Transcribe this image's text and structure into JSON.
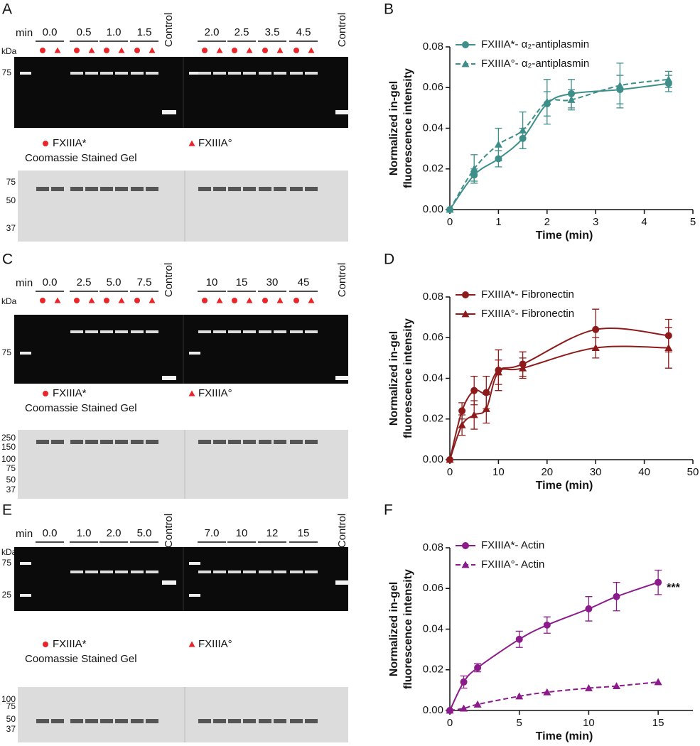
{
  "gels": [
    {
      "panel": "A",
      "min_label": "min",
      "kda_label": "kDa",
      "times": [
        "0.0",
        "0.5",
        "1.0",
        "1.5",
        "2.0",
        "2.5",
        "3.5",
        "4.5"
      ],
      "control": "Control",
      "markers": [
        "75"
      ],
      "legend": [
        "FXIIIA*",
        "FXIIIA°"
      ],
      "coomassie_title": "Coomassie Stained Gel",
      "coomassie_markers": [
        "75",
        "50",
        "37"
      ]
    },
    {
      "panel": "C",
      "min_label": "min",
      "kda_label": "kDa",
      "times": [
        "0.0",
        "2.5",
        "5.0",
        "7.5",
        "10",
        "15",
        "30",
        "45"
      ],
      "control": "Control",
      "markers": [
        "75"
      ],
      "legend": [
        "FXIIIA*",
        "FXIIIA°"
      ],
      "coomassie_title": "Coomassie Stained Gel",
      "coomassie_markers": [
        "250",
        "150",
        "100",
        "75",
        "50",
        "37"
      ]
    },
    {
      "panel": "E",
      "min_label": "min",
      "kda_label": "kDa",
      "times": [
        "0.0",
        "1.0",
        "2.0",
        "5.0",
        "7.0",
        "10",
        "12",
        "15"
      ],
      "control": "Control",
      "markers": [
        "75",
        "25"
      ],
      "legend": [
        "FXIIIA*",
        "FXIIIA°"
      ],
      "coomassie_title": "Coomassie Stained Gel",
      "coomassie_markers": [
        "100",
        "75",
        "50",
        "37"
      ]
    }
  ],
  "chart_data": [
    {
      "panel": "B",
      "type": "line",
      "x": [
        0,
        0.5,
        1,
        1.5,
        2,
        2.5,
        3.5,
        4.5
      ],
      "series": [
        {
          "name": "FXIIIA*- α₂-antiplasmin",
          "color": "#3e8e8a",
          "marker": "circle",
          "line_style": "solid",
          "values": [
            0,
            0.017,
            0.025,
            0.035,
            0.052,
            0.057,
            0.059,
            0.062
          ],
          "errors": [
            0,
            0.003,
            0.004,
            0.005,
            0.006,
            0.007,
            0.007,
            0.004
          ]
        },
        {
          "name": "FXIIIA°- α₂-antiplasmin",
          "color": "#3e8e8a",
          "marker": "triangle",
          "line_style": "dashed",
          "values": [
            0,
            0.02,
            0.032,
            0.039,
            0.053,
            0.054,
            0.061,
            0.064
          ],
          "errors": [
            0,
            0.007,
            0.008,
            0.009,
            0.011,
            0.005,
            0.011,
            0.004
          ]
        }
      ],
      "xlabel": "Time (min)",
      "ylabel": [
        "Normalized in-gel",
        "fluorescence intensity"
      ],
      "xlim": [
        0,
        5
      ],
      "xticks": [
        0,
        1,
        2,
        3,
        4,
        5
      ],
      "ylim": [
        0,
        0.08
      ],
      "yticks": [
        {
          "value": 0,
          "label": "0.00"
        },
        {
          "value": 0.02,
          "label": "0.02"
        },
        {
          "value": 0.04,
          "label": "0.04"
        },
        {
          "value": 0.06,
          "label": "0.06"
        },
        {
          "value": 0.08,
          "label": "0.08"
        }
      ],
      "legend": "upper left"
    },
    {
      "panel": "D",
      "type": "line",
      "x": [
        0,
        2.5,
        5,
        7.5,
        10,
        15,
        30,
        45
      ],
      "series": [
        {
          "name": "FXIIIA*- Fibronectin",
          "color": "#8e1b1b",
          "marker": "circle",
          "line_style": "solid",
          "values": [
            0,
            0.024,
            0.034,
            0.033,
            0.044,
            0.047,
            0.064,
            0.061
          ],
          "errors": [
            0,
            0.004,
            0.007,
            0.008,
            0.01,
            0.006,
            0.01,
            0.008
          ]
        },
        {
          "name": "FXIIIA°- Fibronectin",
          "color": "#8e1b1b",
          "marker": "triangle",
          "line_style": "solid",
          "values": [
            0,
            0.017,
            0.022,
            0.025,
            0.043,
            0.045,
            0.055,
            0.055
          ],
          "errors": [
            0,
            0.005,
            0.007,
            0.007,
            0.006,
            0.005,
            0.005,
            0.01
          ]
        }
      ],
      "xlabel": "Time (min)",
      "ylabel": [
        "Normalized in-gel",
        "fluorescence intensity"
      ],
      "xlim": [
        0,
        50
      ],
      "xticks": [
        0,
        10,
        20,
        30,
        40,
        50
      ],
      "ylim": [
        0,
        0.08
      ],
      "yticks": [
        {
          "value": 0,
          "label": "0.00"
        },
        {
          "value": 0.02,
          "label": "0.02"
        },
        {
          "value": 0.04,
          "label": "0.04"
        },
        {
          "value": 0.06,
          "label": "0.06"
        },
        {
          "value": 0.08,
          "label": "0.08"
        }
      ],
      "legend": "upper left"
    },
    {
      "panel": "F",
      "type": "line",
      "x": [
        0,
        1,
        2,
        5,
        7,
        10,
        12,
        15
      ],
      "series": [
        {
          "name": "FXIIIA*- Actin",
          "color": "#8b1a8b",
          "marker": "circle",
          "line_style": "solid",
          "values": [
            0,
            0.014,
            0.021,
            0.035,
            0.042,
            0.05,
            0.056,
            0.063
          ],
          "errors": [
            0,
            0.003,
            0.002,
            0.004,
            0.004,
            0.006,
            0.007,
            0.006
          ]
        },
        {
          "name": "FXIIIA°- Actin",
          "color": "#8b1a8b",
          "marker": "triangle",
          "line_style": "dashed",
          "values": [
            0,
            0.001,
            0.003,
            0.007,
            0.009,
            0.011,
            0.012,
            0.014
          ]
        }
      ],
      "xlabel": "Time (min)",
      "ylabel": [
        "Normalized in-gel",
        "fluorescence intensity"
      ],
      "xlim": [
        0,
        17.5
      ],
      "xticks": [
        0,
        5,
        10,
        15
      ],
      "ylim": [
        0,
        0.08
      ],
      "yticks": [
        {
          "value": 0,
          "label": "0.00"
        },
        {
          "value": 0.02,
          "label": "0.02"
        },
        {
          "value": 0.04,
          "label": "0.04"
        },
        {
          "value": 0.06,
          "label": "0.06"
        },
        {
          "value": 0.08,
          "label": "0.08"
        }
      ],
      "legend": "upper left",
      "annotation": "***"
    }
  ]
}
